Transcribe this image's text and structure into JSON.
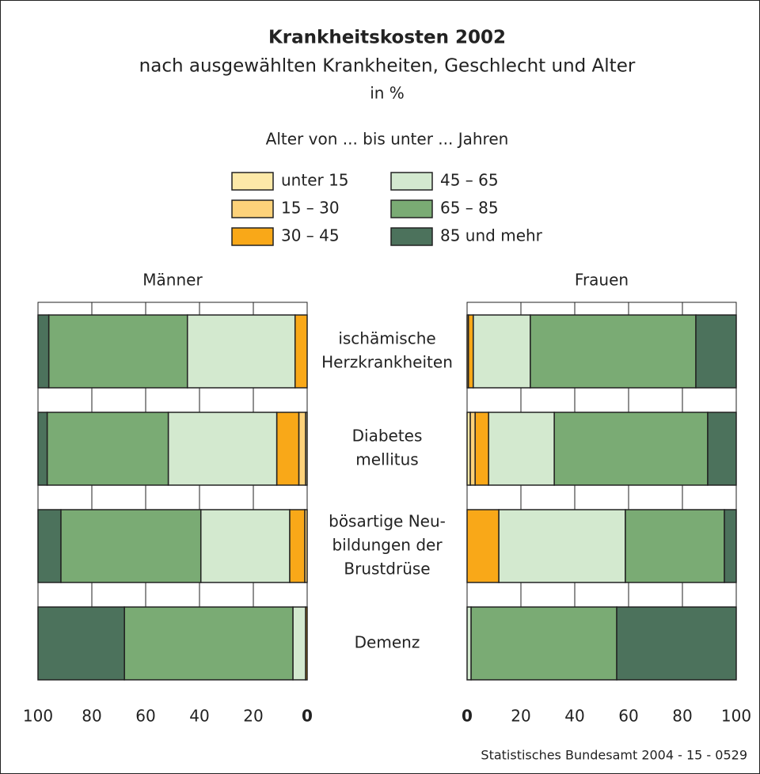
{
  "title": "Krankheitskosten 2002",
  "subtitle": "nach ausgewählten Krankheiten, Geschlecht und Alter",
  "unit": "in %",
  "legend_title": "Alter von ... bis unter ... Jahren",
  "source": "Statistisches Bundesamt 2004 - 15 - 0529",
  "chart_data": [
    {
      "type": "bar",
      "orientation": "horizontal",
      "stacked": true,
      "title": "Männer",
      "categories": [
        [
          "ischämische",
          "Herzkrankheiten"
        ],
        [
          "Diabetes",
          "mellitus"
        ],
        [
          "bösartige Neu-",
          "bildungen der",
          "Brustdrüse"
        ],
        [
          "Demenz"
        ]
      ],
      "xlim": [
        100,
        0
      ],
      "xticks": [
        100,
        80,
        60,
        40,
        20,
        0
      ],
      "grid": true,
      "series": [
        {
          "name": "unter 15",
          "color": "#fde9a8",
          "values": [
            0,
            0.6,
            0,
            0
          ]
        },
        {
          "name": "15 – 30",
          "color": "#fdd27a",
          "values": [
            0,
            2.5,
            0.9,
            0
          ]
        },
        {
          "name": "30 – 45",
          "color": "#f9a818",
          "values": [
            4.5,
            8.2,
            5.6,
            0.6
          ]
        },
        {
          "name": "45 – 65",
          "color": "#d3e9cf",
          "values": [
            40,
            40.3,
            33,
            4.7
          ]
        },
        {
          "name": "65 – 85",
          "color": "#7aab74",
          "values": [
            51.5,
            45,
            52,
            62.6
          ]
        },
        {
          "name": "85 und mehr",
          "color": "#4c725c",
          "values": [
            4,
            3.4,
            8.5,
            32.1
          ]
        }
      ]
    },
    {
      "type": "bar",
      "orientation": "horizontal",
      "stacked": true,
      "title": "Frauen",
      "xlim": [
        0,
        100
      ],
      "xticks": [
        0,
        20,
        40,
        60,
        80,
        100
      ],
      "grid": true,
      "series": [
        {
          "values": [
            0,
            1.2,
            0,
            0
          ]
        },
        {
          "values": [
            0.5,
            1.8,
            0,
            0
          ]
        },
        {
          "values": [
            1.8,
            5,
            11.8,
            0
          ]
        },
        {
          "values": [
            21.2,
            24.4,
            47,
            1.5
          ]
        },
        {
          "values": [
            61.5,
            57,
            36.8,
            54.1
          ]
        },
        {
          "values": [
            15,
            10.6,
            4.4,
            44.4
          ]
        }
      ]
    }
  ]
}
